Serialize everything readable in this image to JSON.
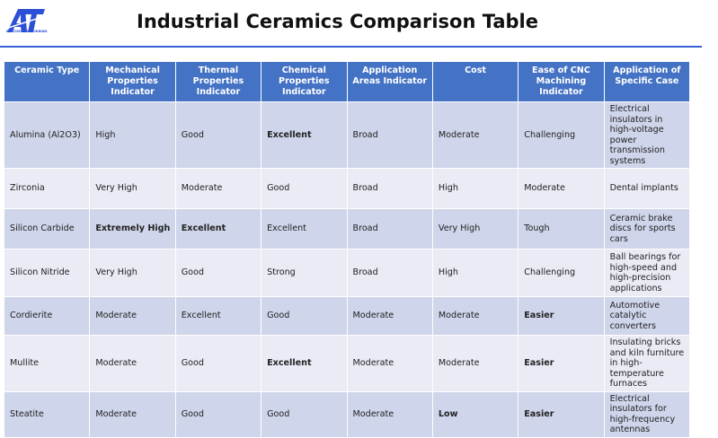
{
  "logo": {
    "text": "AT",
    "subtitle": "PRECISION MACHINING"
  },
  "title": "Industrial Ceramics Comparison Table",
  "colors": {
    "header": "#4472C4",
    "row_odd": "#CFD5EA",
    "row_even": "#E9EBF5",
    "accent": "#3a5fd6"
  },
  "headers": [
    "Ceramic Type",
    "Mechanical Properties Indicator",
    "Thermal Properties Indicator",
    "Chemical Properties Indicator",
    "Application Areas Indicator",
    "Cost",
    "Ease of CNC Machining Indicator",
    "Application of Specific Case"
  ],
  "rows": [
    [
      "Alumina (Al2O3)",
      "High",
      "Good",
      "Excellent",
      "Broad",
      "Moderate",
      "Challenging",
      "Electrical insulators in high-voltage power transmission systems"
    ],
    [
      "Zirconia",
      "Very High",
      "Moderate",
      "Good",
      "Broad",
      "High",
      "Moderate",
      "Dental implants"
    ],
    [
      "Silicon Carbide",
      "Extremely High",
      "Excellent",
      "Excellent",
      "Broad",
      "Very High",
      "Tough",
      "Ceramic brake discs for sports cars"
    ],
    [
      "Silicon Nitride",
      "Very High",
      "Good",
      "Strong",
      "Broad",
      "High",
      "Challenging",
      "Ball bearings for high-speed and high-precision applications"
    ],
    [
      "Cordierite",
      "Moderate",
      "Excellent",
      "Good",
      "Moderate",
      "Moderate",
      "Easier",
      "Automotive catalytic converters"
    ],
    [
      "Mullite",
      "Moderate",
      "Good",
      "Excellent",
      "Moderate",
      "Moderate",
      "Easier",
      "Insulating bricks and kiln furniture in high-temperature furnaces"
    ],
    [
      "Steatite",
      "Moderate",
      "Good",
      "Good",
      "Moderate",
      "Low",
      "Easier",
      "Electrical insulators for high-frequency antennas"
    ]
  ],
  "bold_cells": [
    [
      0,
      3
    ],
    [
      2,
      1
    ],
    [
      2,
      2
    ],
    [
      4,
      6
    ],
    [
      5,
      3
    ],
    [
      5,
      6
    ],
    [
      6,
      5
    ],
    [
      6,
      6
    ]
  ]
}
